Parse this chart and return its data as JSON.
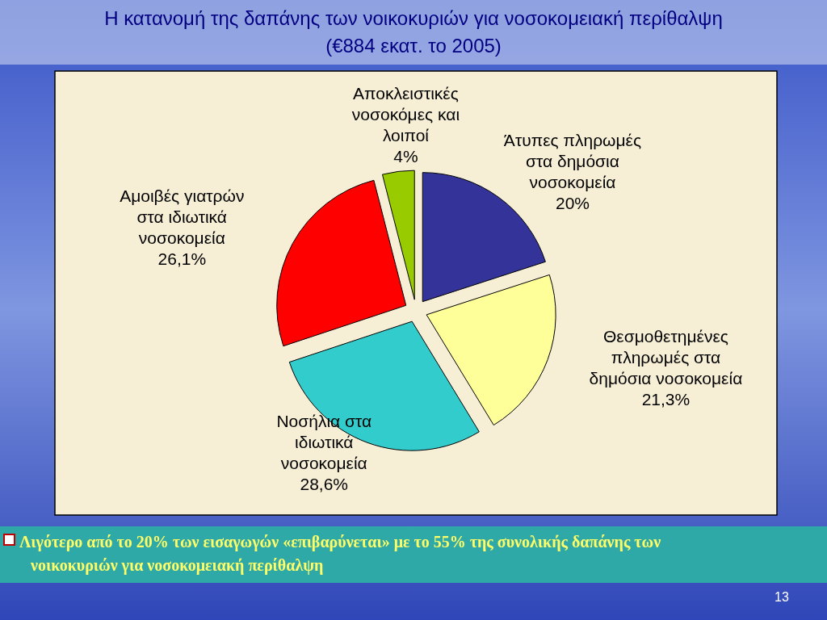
{
  "chart_data": {
    "type": "pie",
    "title": "Η κατανομή της δαπάνης των νοικοκυριών για νοσοκομειακή περίθαλψη",
    "subtitle": "(€884 εκατ. το 2005)",
    "categories": [
      "Άτυπες πληρωμές στα δημόσια νοσοκομεία",
      "Θεσμοθετημένες πληρωμές στα δημόσια νοσοκομεία",
      "Νοσήλια στα ιδιωτικά νοσοκομεία",
      "Αμοιβές γιατρών στα ιδιωτικά νοσοκομεία",
      "Αποκλειστικές νοσοκόμες και λοιποί"
    ],
    "values": [
      20,
      21.3,
      28.6,
      26.1,
      4
    ],
    "value_labels": [
      "20%",
      "21,3%",
      "28,6%",
      "26,1%",
      "4%"
    ],
    "colors": [
      "#333399",
      "#ffff99",
      "#33cccc",
      "#ff0000",
      "#99cc00"
    ],
    "annotations": [
      "Λιγότερο από το 20% των εισαγωγών «επιβαρύνεται» με το 55% της συνολικής δαπάνης των νοικοκυριών για νοσοκομειακή περίθαλψη",
      "13"
    ]
  }
}
